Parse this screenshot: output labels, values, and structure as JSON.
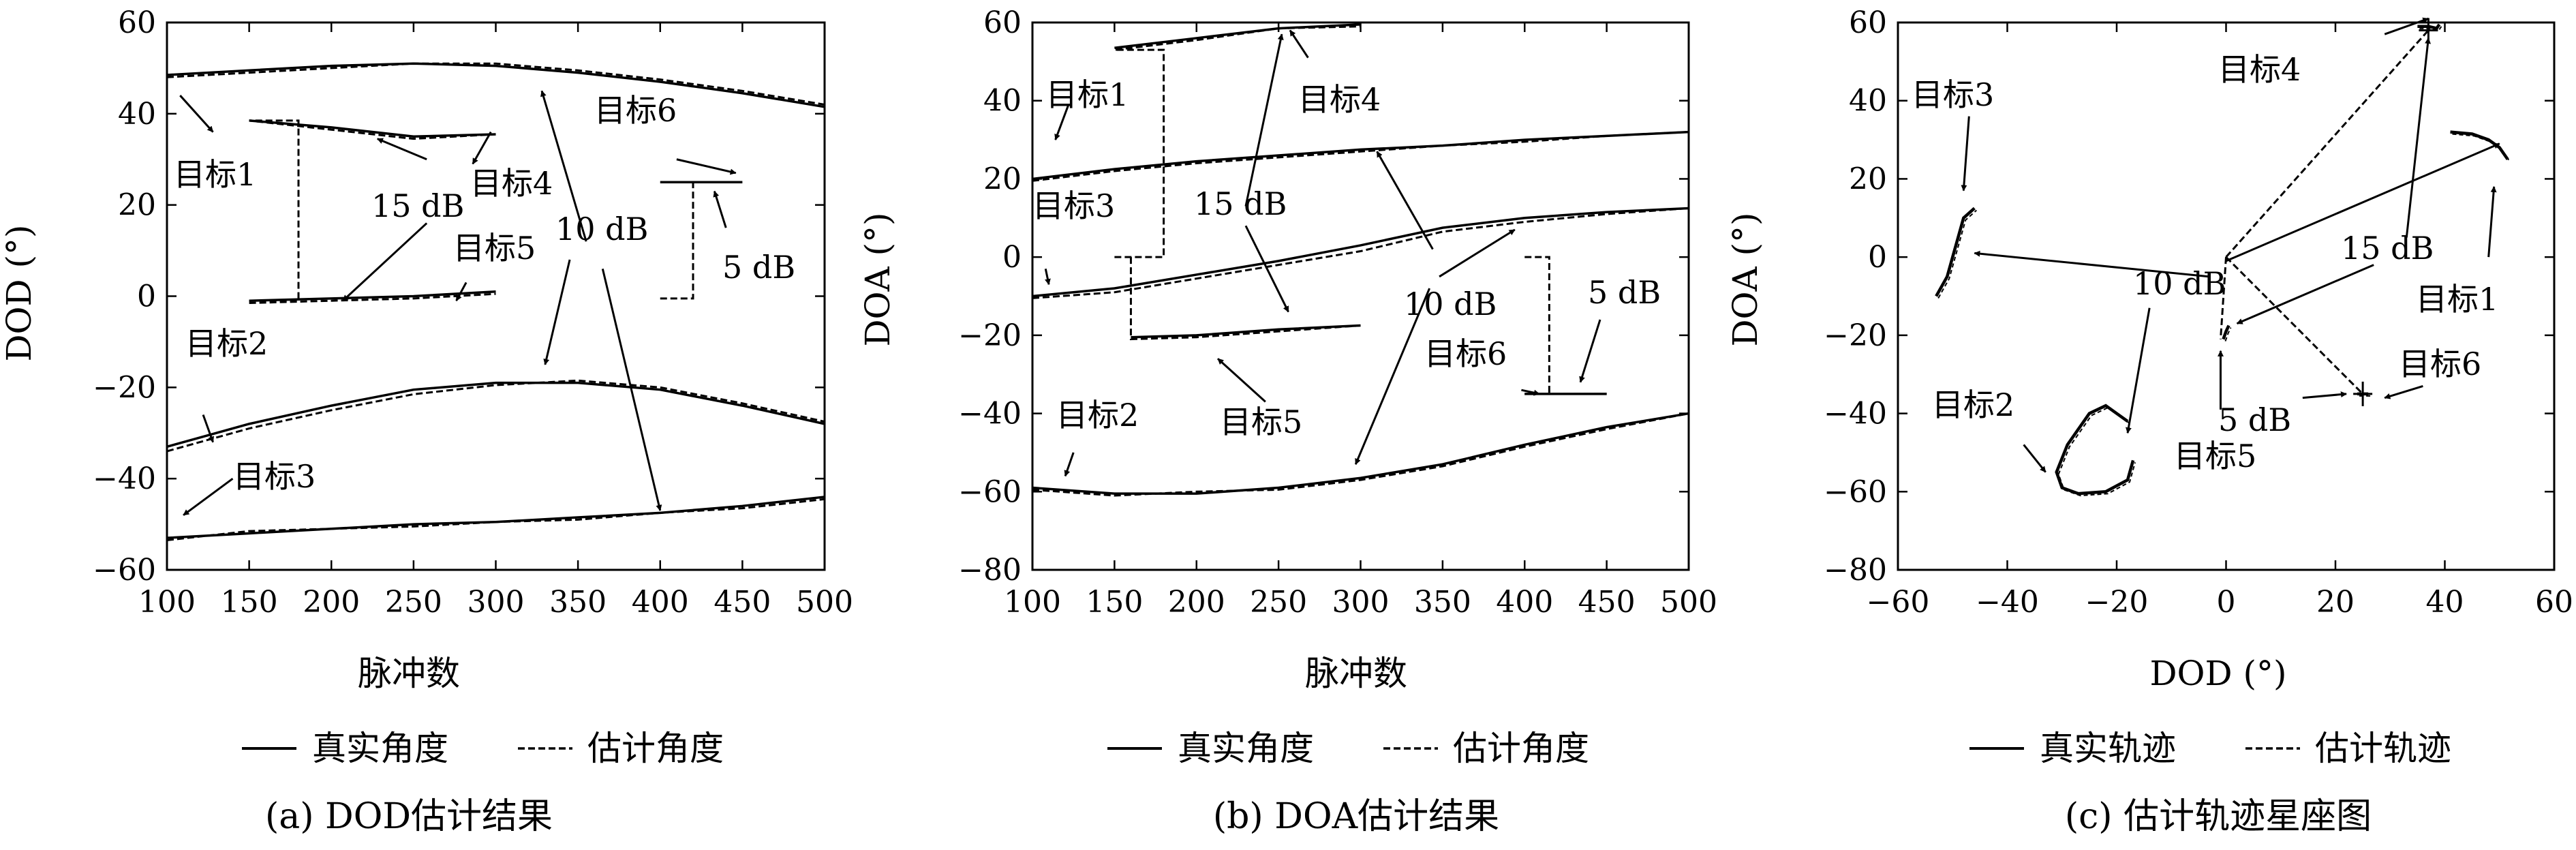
{
  "chart_data": [
    {
      "type": "line",
      "caption": "(a) DOD估计结果",
      "xlabel": "脉冲数",
      "ylabel": "DOD (°)",
      "xlim": [
        100,
        500
      ],
      "ylim": [
        -60,
        60
      ],
      "xticks": [
        100,
        150,
        200,
        250,
        300,
        350,
        400,
        450,
        500
      ],
      "yticks": [
        -60,
        -40,
        -20,
        0,
        20,
        40,
        60
      ],
      "legend": {
        "true": "真实角度",
        "est": "估计角度"
      },
      "series": [
        {
          "name": "目标1",
          "x": [
            100,
            150,
            200,
            250,
            300,
            350,
            400,
            450,
            500
          ],
          "true": [
            48.5,
            49.5,
            50.5,
            51,
            50.5,
            49,
            47,
            44.5,
            41.5
          ],
          "est": [
            48,
            49,
            50,
            51,
            51,
            49.5,
            47.5,
            45,
            42
          ]
        },
        {
          "name": "目标2",
          "x": [
            100,
            150,
            200,
            250,
            300,
            350,
            400,
            450,
            500
          ],
          "true": [
            -33,
            -28,
            -24,
            -20.5,
            -19,
            -19,
            -20.5,
            -24,
            -28
          ],
          "est": [
            -34,
            -29,
            -25,
            -21.5,
            -19.5,
            -18.5,
            -20,
            -23.5,
            -27.5
          ]
        },
        {
          "name": "目标3",
          "x": [
            100,
            150,
            200,
            250,
            300,
            350,
            400,
            450,
            500
          ],
          "true": [
            -53,
            -52,
            -51,
            -50,
            -49.5,
            -48.5,
            -47.5,
            -46,
            -44
          ],
          "est": [
            -53.5,
            -51.5,
            -51,
            -50.5,
            -49.5,
            -49,
            -47.5,
            -46.5,
            -44.5
          ]
        },
        {
          "name": "目标4",
          "x": [
            150,
            200,
            250,
            300
          ],
          "true": [
            38.5,
            37,
            35,
            35.5
          ],
          "est": [
            38.5,
            36.5,
            34.5,
            35.5
          ],
          "est_initial": [
            180,
            -1
          ]
        },
        {
          "name": "目标5",
          "x": [
            150,
            200,
            250,
            300
          ],
          "true": [
            -1,
            -0.5,
            0,
            1
          ],
          "est": [
            -1.5,
            -1,
            -0.5,
            0.5
          ]
        },
        {
          "name": "目标6",
          "x": [
            400,
            420,
            450
          ],
          "true": [
            25,
            25,
            25
          ],
          "est": [
            25,
            25,
            25
          ],
          "est_initial": [
            420,
            -0.5
          ]
        }
      ],
      "annotations": [
        {
          "text": "目标1"
        },
        {
          "text": "目标2"
        },
        {
          "text": "目标3"
        },
        {
          "text": "目标4"
        },
        {
          "text": "目标5"
        },
        {
          "text": "目标6"
        },
        {
          "text": "15 dB"
        },
        {
          "text": "10 dB"
        },
        {
          "text": "5 dB"
        }
      ]
    },
    {
      "type": "line",
      "caption": "(b) DOA估计结果",
      "xlabel": "脉冲数",
      "ylabel": "DOA (°)",
      "xlim": [
        100,
        500
      ],
      "ylim": [
        -80,
        60
      ],
      "xticks": [
        100,
        150,
        200,
        250,
        300,
        350,
        400,
        450,
        500
      ],
      "yticks": [
        -80,
        -60,
        -40,
        -20,
        0,
        20,
        40,
        60
      ],
      "legend": {
        "true": "真实角度",
        "est": "估计角度"
      },
      "series": [
        {
          "name": "目标1",
          "x": [
            100,
            150,
            200,
            250,
            300,
            350,
            400,
            450,
            500
          ],
          "true": [
            20,
            22.5,
            24.5,
            26,
            27.5,
            28.5,
            30,
            31,
            32
          ],
          "est": [
            19.5,
            22,
            24,
            25.5,
            27,
            28.5,
            29.5,
            31,
            32
          ]
        },
        {
          "name": "目标2",
          "x": [
            100,
            150,
            200,
            250,
            300,
            350,
            400,
            450,
            500
          ],
          "true": [
            -59,
            -60.5,
            -60.5,
            -59,
            -56.5,
            -53,
            -48,
            -43.5,
            -40
          ],
          "est": [
            -59.5,
            -61,
            -60,
            -59.5,
            -57,
            -53.5,
            -48.5,
            -44,
            -40
          ]
        },
        {
          "name": "目标3",
          "x": [
            100,
            150,
            200,
            250,
            300,
            350,
            400,
            450,
            500
          ],
          "true": [
            -10,
            -8,
            -4.5,
            -1,
            3,
            7.5,
            10,
            11.5,
            12.5
          ],
          "est": [
            -10.5,
            -9,
            -5.5,
            -2,
            1.5,
            6.5,
            9,
            11,
            12.5
          ]
        },
        {
          "name": "目标4",
          "x": [
            150,
            200,
            250,
            300
          ],
          "true": [
            53.5,
            56,
            58.5,
            59.5
          ],
          "est": [
            53,
            55.5,
            58.5,
            59
          ],
          "est_initial": [
            180,
            0
          ]
        },
        {
          "name": "目标5",
          "x": [
            160,
            200,
            250,
            300
          ],
          "true": [
            -20.5,
            -20,
            -18.5,
            -17.5
          ],
          "est": [
            -21,
            -20.5,
            -19,
            -17.5
          ],
          "est_initial": [
            160,
            0
          ]
        },
        {
          "name": "目标6",
          "x": [
            400,
            420,
            450
          ],
          "true": [
            -35,
            -35,
            -35
          ],
          "est": [
            -35,
            -35,
            -35
          ],
          "est_initial": [
            415,
            0
          ]
        }
      ],
      "annotations": [
        {
          "text": "目标1"
        },
        {
          "text": "目标2"
        },
        {
          "text": "目标3"
        },
        {
          "text": "目标4"
        },
        {
          "text": "目标5"
        },
        {
          "text": "目标6"
        },
        {
          "text": "15 dB"
        },
        {
          "text": "10 dB"
        },
        {
          "text": "5 dB"
        }
      ]
    },
    {
      "type": "scatter",
      "caption": "(c) 估计轨迹星座图",
      "xlabel": "DOD (°)",
      "ylabel": "DOA (°)",
      "xlim": [
        -60,
        60
      ],
      "ylim": [
        -80,
        60
      ],
      "xticks": [
        -60,
        -40,
        -20,
        0,
        20,
        40,
        60
      ],
      "yticks": [
        -80,
        -60,
        -40,
        -20,
        0,
        20,
        40,
        60
      ],
      "legend": {
        "true": "真实轨迹",
        "est": "估计轨迹"
      },
      "series": [
        {
          "name": "目标1",
          "points": [
            [
              41,
              32
            ],
            [
              45,
              31.5
            ],
            [
              48,
              30
            ],
            [
              50,
              28
            ],
            [
              51,
              26
            ],
            [
              51.5,
              25
            ]
          ]
        },
        {
          "name": "目标2",
          "points": [
            [
              -18,
              -42
            ],
            [
              -22,
              -38
            ],
            [
              -25,
              -40
            ],
            [
              -29,
              -48
            ],
            [
              -31,
              -55
            ],
            [
              -30,
              -59
            ],
            [
              -27,
              -60.5
            ],
            [
              -22,
              -60
            ],
            [
              -18,
              -57
            ],
            [
              -17,
              -52
            ]
          ]
        },
        {
          "name": "目标3",
          "points": [
            [
              -53,
              -10
            ],
            [
              -51,
              -5
            ],
            [
              -50,
              0
            ],
            [
              -49,
              5
            ],
            [
              -48,
              10
            ],
            [
              -46,
              12.5
            ]
          ]
        },
        {
          "name": "目标4",
          "points": [
            [
              35,
              59
            ],
            [
              37,
              59
            ],
            [
              38.5,
              58.5
            ],
            [
              39,
              59.5
            ]
          ]
        },
        {
          "name": "目标5",
          "points": [
            [
              -0.5,
              -21
            ],
            [
              0,
              -19
            ],
            [
              0.5,
              -17.5
            ]
          ]
        },
        {
          "name": "目标6",
          "points": [
            [
              24,
              -35
            ],
            [
              25,
              -35
            ],
            [
              26,
              -35
            ]
          ]
        }
      ],
      "transitions": [
        [
          [
            0,
            0
          ],
          [
            -1,
            -21
          ]
        ],
        [
          [
            0,
            0
          ],
          [
            37,
            58
          ]
        ],
        [
          [
            0,
            0
          ],
          [
            25,
            -35
          ]
        ]
      ],
      "annotations": [
        {
          "text": "目标1"
        },
        {
          "text": "目标2"
        },
        {
          "text": "目标3"
        },
        {
          "text": "目标4"
        },
        {
          "text": "目标5"
        },
        {
          "text": "目标6"
        },
        {
          "text": "15 dB"
        },
        {
          "text": "10 dB"
        },
        {
          "text": "5 dB"
        }
      ]
    }
  ]
}
